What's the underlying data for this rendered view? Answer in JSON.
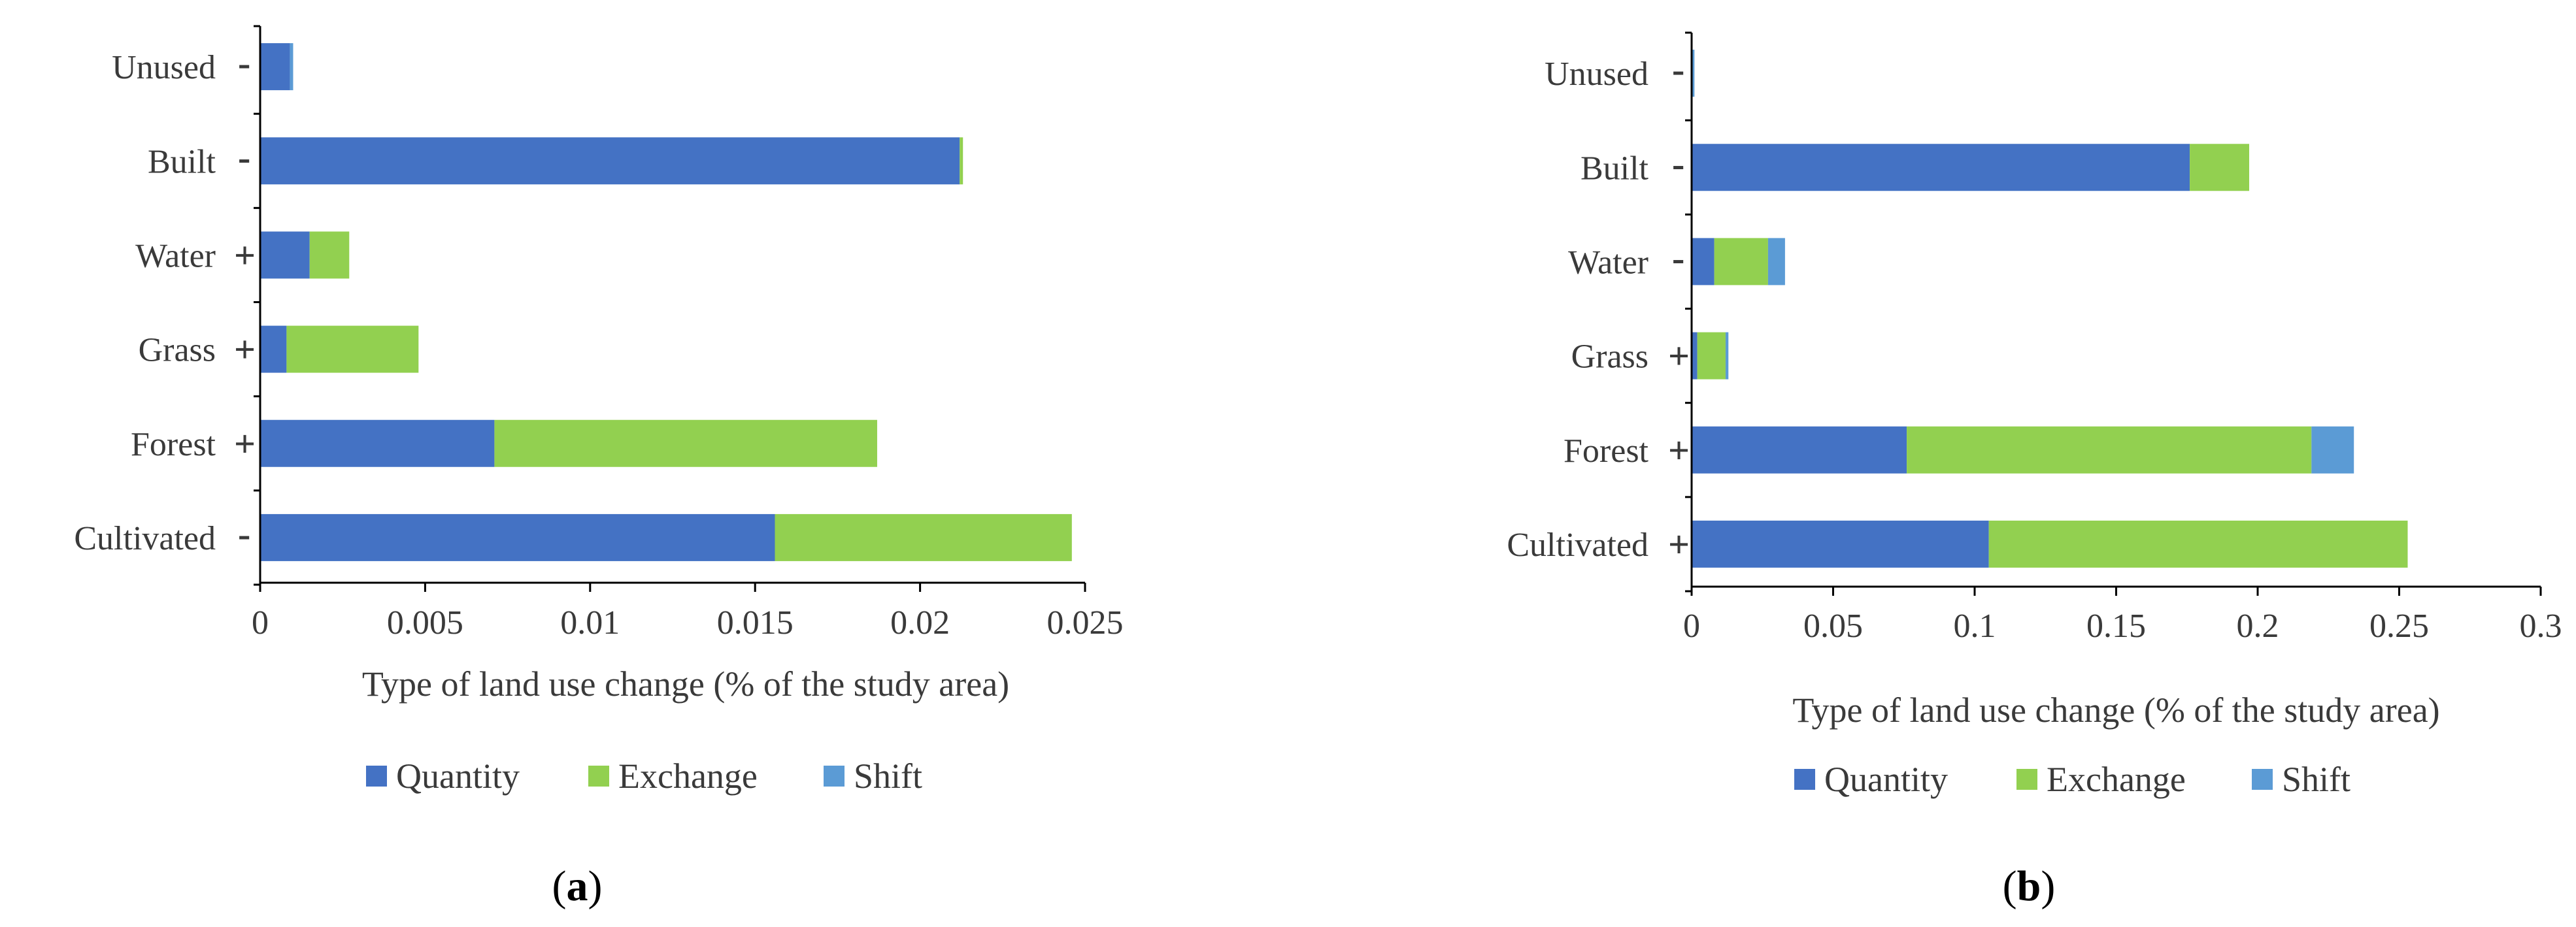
{
  "colors": {
    "Quantity": "#4472C4",
    "Exchange": "#92D050",
    "Shift": "#5B9BD5",
    "sign": "#FF0000",
    "axis": "#000000"
  },
  "charts": [
    {
      "caption": {
        "pre": "(",
        "letter": "a",
        "post": ")"
      },
      "chart_data": {
        "type": "bar",
        "orientation": "horizontal",
        "stacked": true,
        "categories": [
          "Unused",
          "Built",
          "Water",
          "Grass",
          "Forest",
          "Cultivated"
        ],
        "signs": [
          "-",
          "-",
          "+",
          "+",
          "+",
          "-"
        ],
        "series": [
          {
            "name": "Quantity",
            "values": [
              0.0009,
              0.0212,
              0.0015,
              0.0008,
              0.0071,
              0.0156
            ]
          },
          {
            "name": "Exchange",
            "values": [
              0.0,
              0.0001,
              0.0012,
              0.004,
              0.0116,
              0.009
            ]
          },
          {
            "name": "Shift",
            "values": [
              0.0001,
              0.0,
              0.0,
              0.0,
              0.0,
              0.0
            ]
          }
        ],
        "xticks": [
          "0",
          "0.005",
          "0.01",
          "0.015",
          "0.02",
          "0.025"
        ],
        "xlim": [
          0,
          0.025
        ],
        "xlabel": "Type of land use change (% of the study area)",
        "legend": [
          "Quantity",
          "Exchange",
          "Shift"
        ],
        "legend_position": "bottom",
        "grid": false
      }
    },
    {
      "caption": {
        "pre": "(",
        "letter": "b",
        "post": ")"
      },
      "chart_data": {
        "type": "bar",
        "orientation": "horizontal",
        "stacked": true,
        "categories": [
          "Unused",
          "Built",
          "Water",
          "Grass",
          "Forest",
          "Cultivated"
        ],
        "signs": [
          "-",
          "-",
          "-",
          "+",
          "+",
          "+"
        ],
        "series": [
          {
            "name": "Quantity",
            "values": [
              0.0,
              0.176,
              0.008,
              0.002,
              0.076,
              0.105
            ]
          },
          {
            "name": "Exchange",
            "values": [
              0.0,
              0.021,
              0.019,
              0.01,
              0.143,
              0.148
            ]
          },
          {
            "name": "Shift",
            "values": [
              0.001,
              0.0,
              0.006,
              0.001,
              0.015,
              0.0
            ]
          }
        ],
        "xticks": [
          "0",
          "0.05",
          "0.1",
          "0.15",
          "0.2",
          "0.25",
          "0.3"
        ],
        "xlim": [
          0,
          0.3
        ],
        "xlabel": "Type of land use change (% of the study area)",
        "legend": [
          "Quantity",
          "Exchange",
          "Shift"
        ],
        "legend_position": "bottom",
        "grid": false
      }
    }
  ]
}
